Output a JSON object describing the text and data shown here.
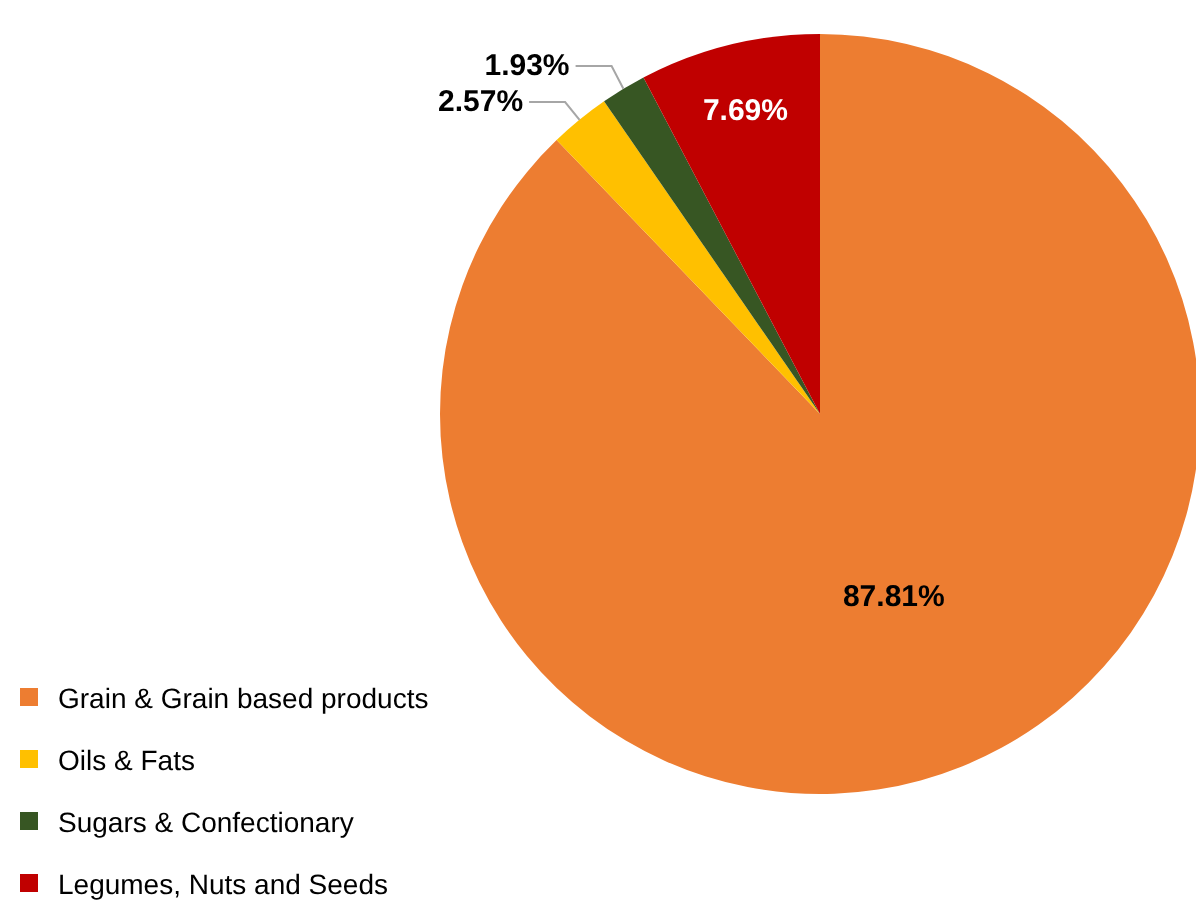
{
  "chart_data": {
    "type": "pie",
    "categories": [
      "Grain & Grain based products",
      "Oils & Fats",
      "Sugars & Confectionary",
      "Legumes, Nuts and Seeds"
    ],
    "values": [
      87.81,
      2.57,
      1.93,
      7.69
    ],
    "colors": [
      "#ed7d31",
      "#ffc000",
      "#375623",
      "#c00000"
    ],
    "value_labels": [
      "87.81%",
      "2.57%",
      "1.93%",
      "7.69%"
    ],
    "legend": "bottom left"
  }
}
